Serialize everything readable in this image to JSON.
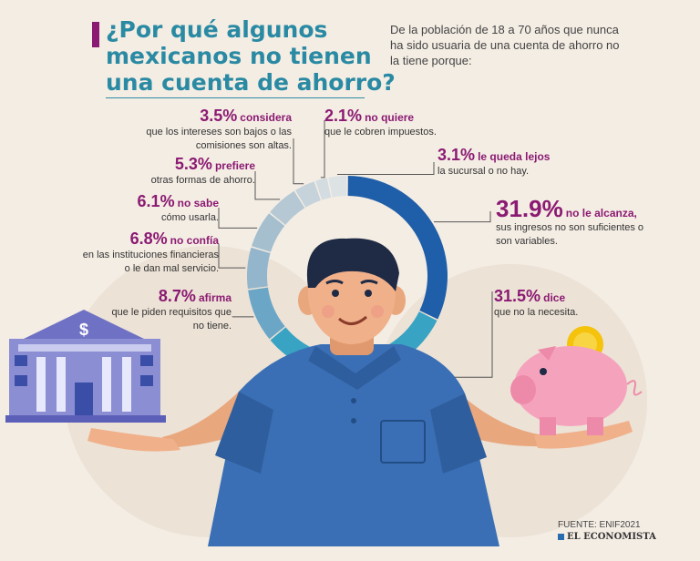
{
  "title_lines": [
    "¿Por qué algunos",
    "mexicanos no tienen",
    "una cuenta de ahorro?"
  ],
  "subtitle": "De la población de 18 a 70 años que nunca ha sido usuaria de una cuenta de ahorro no la tiene porque:",
  "chart_data": {
    "type": "pie",
    "title": "¿Por qué algunos mexicanos no tienen una cuenta de ahorro?",
    "slices": [
      {
        "pct": "31.9%",
        "value": 31.9,
        "highlight": "no le alcanza,",
        "desc": [
          "sus ingresos no son suficientes o",
          "son variables."
        ],
        "color": "#1f5ea8"
      },
      {
        "pct": "31.5%",
        "value": 31.5,
        "highlight": "dice",
        "desc": [
          "que no la necesita."
        ],
        "color": "#39a3c4"
      },
      {
        "pct": "8.7%",
        "value": 8.7,
        "highlight": "afirma",
        "desc": [
          "que le piden requisitos que",
          "no tiene."
        ],
        "color": "#6ba6c7"
      },
      {
        "pct": "6.8%",
        "value": 6.8,
        "highlight": "no confía",
        "desc": [
          "en las instituciones financieras",
          "o le dan mal servicio."
        ],
        "color": "#93b6cc"
      },
      {
        "pct": "6.1%",
        "value": 6.1,
        "highlight": "no sabe",
        "desc": [
          "cómo usarla."
        ],
        "color": "#a5bfcf"
      },
      {
        "pct": "5.3%",
        "value": 5.3,
        "highlight": "prefiere",
        "desc": [
          "otras formas de ahorro."
        ],
        "color": "#b5c8d3"
      },
      {
        "pct": "3.5%",
        "value": 3.5,
        "highlight": "considera",
        "desc": [
          "que los intereses son bajos o las",
          "comisiones son altas."
        ],
        "color": "#c6d3da"
      },
      {
        "pct": "2.1%",
        "value": 2.1,
        "highlight": "no quiere",
        "desc": [
          "que le cobren impuestos."
        ],
        "color": "#d3dce0"
      },
      {
        "pct": "3.1%",
        "value": 3.1,
        "highlight": "le queda lejos",
        "desc": [
          "la sucursal o no hay."
        ],
        "color": "#dde3e5"
      }
    ]
  },
  "source": "FUENTE: ENIF2021",
  "brand": "EL ECONOMISTA",
  "bank_symbol": "$",
  "colors": {
    "accent": "#8b1a72",
    "title": "#2a8aa3",
    "background": "#f4ede4"
  }
}
